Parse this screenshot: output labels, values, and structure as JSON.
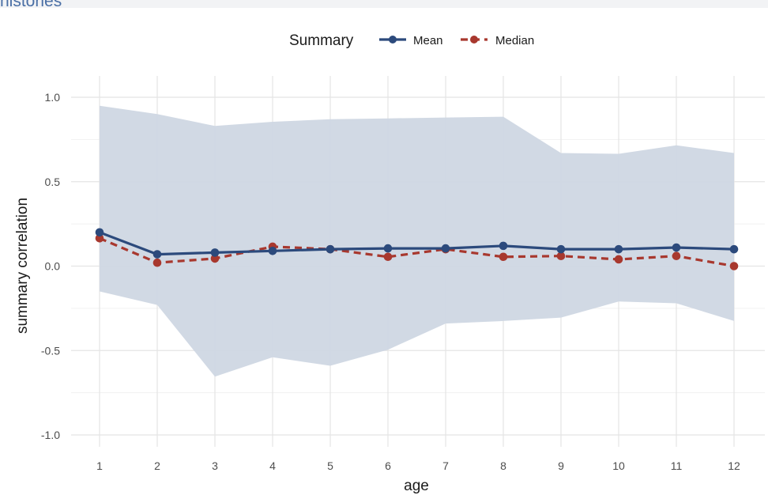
{
  "page": {
    "top_fragment": "nistories"
  },
  "chart_data": {
    "type": "line",
    "title": "",
    "xlabel": "age",
    "ylabel": "summary correlation",
    "x": [
      1,
      2,
      3,
      4,
      5,
      6,
      7,
      8,
      9,
      10,
      11,
      12
    ],
    "x_tick_labels": [
      "1",
      "2",
      "3",
      "4",
      "5",
      "6",
      "7",
      "8",
      "9",
      "10",
      "11",
      "12"
    ],
    "ylim": [
      -1.0,
      1.0
    ],
    "y_ticks": [
      -1.0,
      -0.5,
      0.0,
      0.5,
      1.0
    ],
    "y_tick_labels": [
      "-1.0",
      "-0.5",
      "0.0",
      "0.5",
      "1.0"
    ],
    "grid": true,
    "legend": {
      "title": "Summary",
      "placement": "top"
    },
    "series": [
      {
        "name": "Mean",
        "values": [
          0.2,
          0.07,
          0.08,
          0.09,
          0.1,
          0.105,
          0.105,
          0.12,
          0.1,
          0.1,
          0.11,
          0.1
        ],
        "color": "#2c4a7c",
        "style": "solid"
      },
      {
        "name": "Median",
        "values": [
          0.165,
          0.02,
          0.045,
          0.115,
          0.1,
          0.055,
          0.1,
          0.055,
          0.06,
          0.04,
          0.06,
          0.0
        ],
        "color": "#a8382e",
        "style": "dashed"
      }
    ],
    "band": {
      "upper": [
        0.95,
        0.9,
        0.83,
        0.855,
        0.87,
        0.875,
        0.88,
        0.885,
        0.67,
        0.665,
        0.715,
        0.67
      ],
      "lower": [
        -0.15,
        -0.23,
        -0.655,
        -0.54,
        -0.59,
        -0.495,
        -0.34,
        -0.325,
        -0.305,
        -0.21,
        -0.22,
        -0.325
      ],
      "color": "#cfd7e3"
    }
  }
}
